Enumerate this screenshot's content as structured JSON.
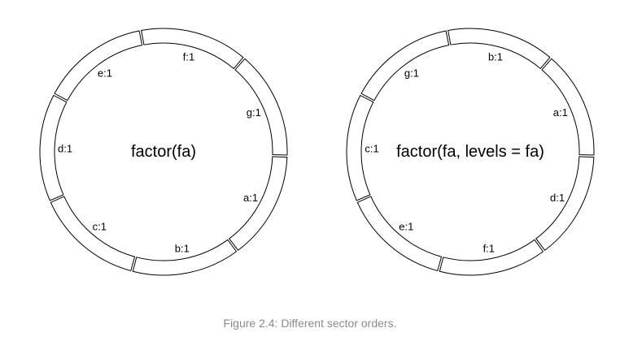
{
  "diagrams": [
    {
      "title": "factor(fa)",
      "sectors": [
        "a:1",
        "b:1",
        "c:1",
        "d:1",
        "e:1",
        "f:1",
        "g:1"
      ]
    },
    {
      "title": "factor(fa, levels = fa)",
      "sectors": [
        "d:1",
        "f:1",
        "e:1",
        "c:1",
        "g:1",
        "b:1",
        "a:1"
      ]
    }
  ],
  "caption": "Figure 2.4: Different sector orders."
}
